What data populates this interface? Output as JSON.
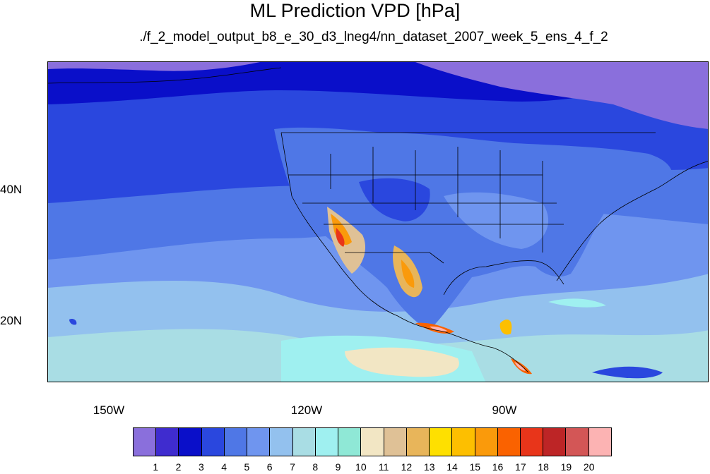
{
  "title": "ML Prediction VPD [hPa]",
  "subtitle": "./f_2_model_output_b8_e_30_d3_lneg4/nn_dataset_2007_week_5_ens_4_f_2",
  "map": {
    "type": "filled contour map",
    "projection": "cylindrical equidistant",
    "longitude_range_deg": [
      -160,
      -60
    ],
    "latitude_range_deg": [
      10,
      59
    ],
    "y_ticks": [
      "40N",
      "20N"
    ],
    "x_ticks": [
      "150W",
      "120W",
      "90W"
    ],
    "grid": false,
    "features": [
      "coastlines",
      "US state boundaries",
      "country boundaries"
    ]
  },
  "colorbar": {
    "labels": [
      "1",
      "2",
      "3",
      "4",
      "5",
      "6",
      "7",
      "8",
      "9",
      "10",
      "11",
      "12",
      "13",
      "14",
      "15",
      "16",
      "17",
      "18",
      "19",
      "20"
    ],
    "colors": [
      "#8a6fdc",
      "#3f2ccf",
      "#0a0fc9",
      "#2a47de",
      "#4f77e6",
      "#6f95ef",
      "#93c1ee",
      "#a9dde4",
      "#9ff0f0",
      "#8fe8d6",
      "#f2e6c4",
      "#dfc196",
      "#e8b55a",
      "#fee000",
      "#fdbf00",
      "#fa9a0b",
      "#fa6200",
      "#e8351a",
      "#bd2526",
      "#d35656",
      "#fcb3b3"
    ]
  }
}
